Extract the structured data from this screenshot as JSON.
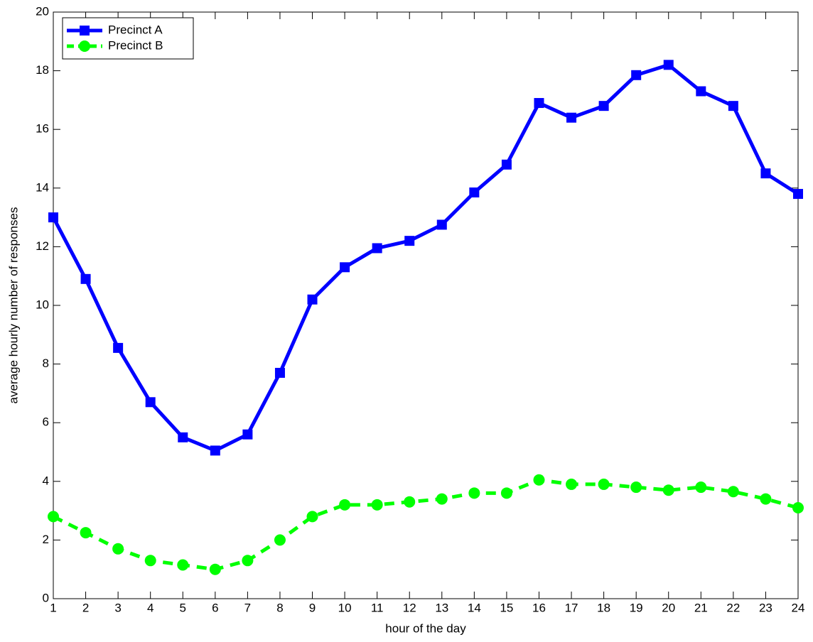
{
  "chart_data": {
    "type": "line",
    "xlabel": "hour of the day",
    "ylabel": "average hourly number of responses",
    "x": [
      1,
      2,
      3,
      4,
      5,
      6,
      7,
      8,
      9,
      10,
      11,
      12,
      13,
      14,
      15,
      16,
      17,
      18,
      19,
      20,
      21,
      22,
      23,
      24
    ],
    "series": [
      {
        "name": "Precinct A",
        "color": "#0000ff",
        "marker": "square",
        "linestyle": "solid",
        "values": [
          13.0,
          10.9,
          8.55,
          6.7,
          5.5,
          5.05,
          5.6,
          7.7,
          10.2,
          11.3,
          11.95,
          12.2,
          12.75,
          13.85,
          14.8,
          16.9,
          16.4,
          16.8,
          17.85,
          18.2,
          17.3,
          16.8,
          14.5,
          13.8
        ]
      },
      {
        "name": "Precinct B",
        "color": "#00ff00",
        "marker": "circle",
        "linestyle": "dashed",
        "values": [
          2.8,
          2.25,
          1.7,
          1.3,
          1.15,
          1.0,
          1.3,
          2.0,
          2.8,
          3.2,
          3.2,
          3.3,
          3.4,
          3.6,
          3.6,
          4.05,
          3.9,
          3.9,
          3.8,
          3.7,
          3.8,
          3.65,
          3.4,
          3.1
        ]
      }
    ],
    "xlim": [
      1,
      24
    ],
    "xticks": [
      1,
      2,
      3,
      4,
      5,
      6,
      7,
      8,
      9,
      10,
      11,
      12,
      13,
      14,
      15,
      16,
      17,
      18,
      19,
      20,
      21,
      22,
      23,
      24
    ],
    "ylim": [
      0,
      20
    ],
    "yticks": [
      0,
      2,
      4,
      6,
      8,
      10,
      12,
      14,
      16,
      18,
      20
    ],
    "grid": false,
    "legend": "upper-left"
  }
}
